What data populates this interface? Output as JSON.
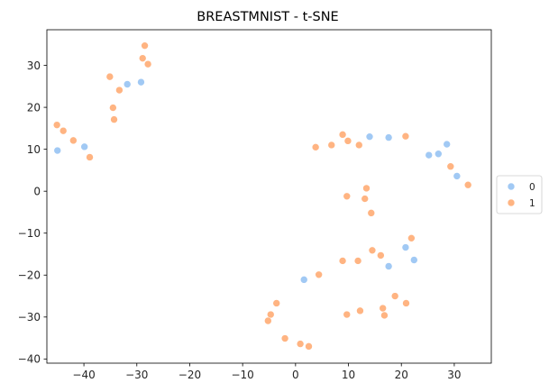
{
  "chart_data": {
    "type": "scatter",
    "title": "BREASTMNIST - t-SNE",
    "xlabel": "",
    "ylabel": "",
    "xlim": [
      -47,
      37
    ],
    "ylim": [
      -41,
      38.5
    ],
    "xticks": [
      -40,
      -30,
      -20,
      -10,
      0,
      10,
      20,
      30
    ],
    "yticks": [
      -40,
      -30,
      -20,
      -10,
      0,
      10,
      20,
      30
    ],
    "grid": false,
    "legend_position": "center-right outside",
    "series": [
      {
        "name": "0",
        "color": "#a1c9f4",
        "points": [
          [
            -45,
            9.7
          ],
          [
            -39.9,
            10.6
          ],
          [
            -31.8,
            25.5
          ],
          [
            -29.2,
            26.0
          ],
          [
            14.0,
            13.0
          ],
          [
            17.6,
            12.8
          ],
          [
            25.2,
            8.6
          ],
          [
            27.0,
            8.9
          ],
          [
            28.6,
            11.2
          ],
          [
            30.5,
            3.6
          ],
          [
            1.6,
            -21.1
          ],
          [
            17.6,
            -17.9
          ],
          [
            20.8,
            -13.4
          ],
          [
            22.4,
            -16.4
          ]
        ]
      },
      {
        "name": "1",
        "color": "#ffb482",
        "points": [
          [
            -45.1,
            15.8
          ],
          [
            -43.9,
            14.4
          ],
          [
            -42.0,
            12.1
          ],
          [
            -38.9,
            8.1
          ],
          [
            -35.1,
            27.3
          ],
          [
            -34.5,
            19.9
          ],
          [
            -34.3,
            17.1
          ],
          [
            -33.3,
            24.1
          ],
          [
            -28.9,
            31.7
          ],
          [
            -28.5,
            34.7
          ],
          [
            -27.9,
            30.3
          ],
          [
            3.8,
            10.5
          ],
          [
            6.8,
            11.0
          ],
          [
            8.9,
            13.5
          ],
          [
            9.9,
            12.0
          ],
          [
            12.0,
            11.0
          ],
          [
            20.8,
            13.1
          ],
          [
            29.3,
            5.9
          ],
          [
            32.6,
            1.5
          ],
          [
            9.7,
            -1.2
          ],
          [
            13.1,
            -1.8
          ],
          [
            13.4,
            0.7
          ],
          [
            14.3,
            -5.2
          ],
          [
            21.9,
            -11.2
          ],
          [
            16.1,
            -15.3
          ],
          [
            14.5,
            -14.1
          ],
          [
            11.8,
            -16.6
          ],
          [
            8.9,
            -16.6
          ],
          [
            4.4,
            -19.9
          ],
          [
            18.8,
            -25.0
          ],
          [
            20.9,
            -26.7
          ],
          [
            16.5,
            -27.9
          ],
          [
            16.8,
            -29.6
          ],
          [
            12.2,
            -28.5
          ],
          [
            9.7,
            -29.4
          ],
          [
            -3.6,
            -26.7
          ],
          [
            -4.7,
            -29.4
          ],
          [
            -5.2,
            -30.9
          ],
          [
            -2.0,
            -35.1
          ],
          [
            0.9,
            -36.4
          ],
          [
            2.5,
            -37.0
          ]
        ]
      }
    ]
  }
}
